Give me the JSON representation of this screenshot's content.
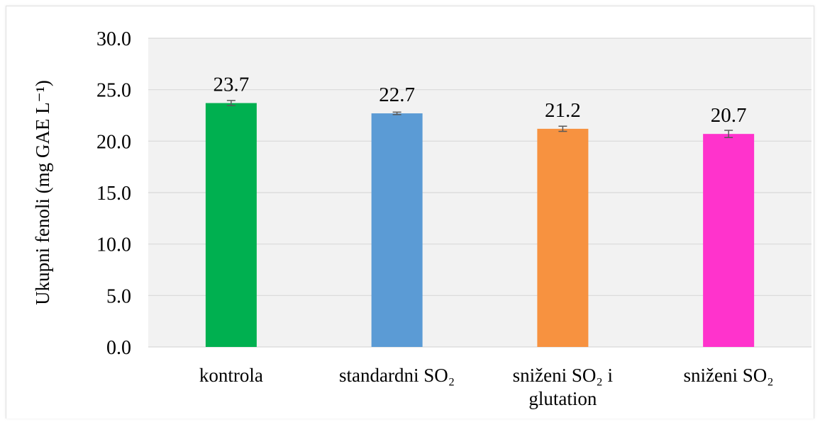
{
  "chart_data": {
    "type": "bar",
    "categories": [
      [
        "kontrola"
      ],
      [
        "standardni SO₂"
      ],
      [
        "sniženi SO₂ i",
        "glutation"
      ],
      [
        "sniženi SO₂"
      ]
    ],
    "values": [
      23.7,
      22.7,
      21.2,
      20.7
    ],
    "value_labels": [
      "23.7",
      "22.7",
      "21.2",
      "20.7"
    ],
    "error": [
      0.25,
      0.12,
      0.25,
      0.35
    ],
    "colors": [
      "#00b050",
      "#5b9bd5",
      "#f79240",
      "#ff33cc"
    ],
    "ylabel": "Ukupni  fenoli (mg GAE L⁻¹)",
    "ylim": [
      0,
      30
    ],
    "yticks": [
      "0.0",
      "5.0",
      "10.0",
      "15.0",
      "20.0",
      "25.0",
      "30.0"
    ],
    "grid": true,
    "plot_background": "#f2f2f2",
    "gridline_color": "#d9d9d9"
  }
}
